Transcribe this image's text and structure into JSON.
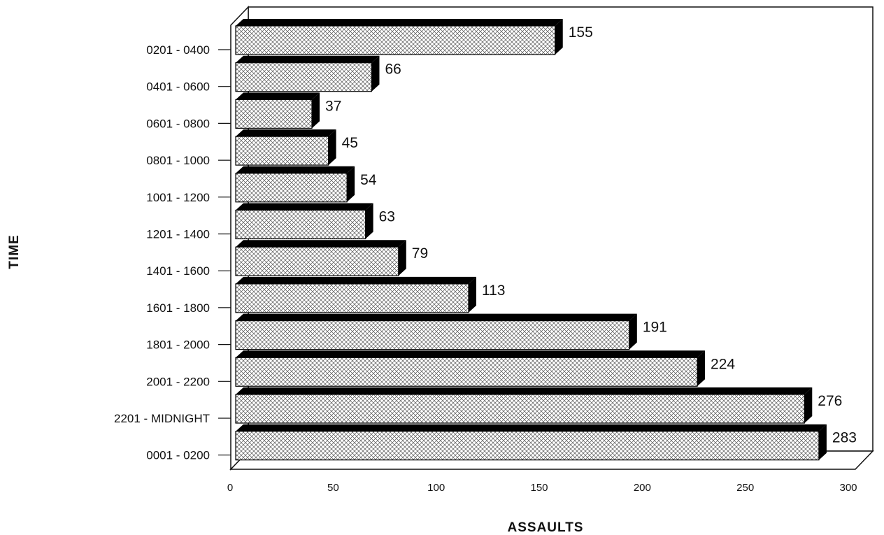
{
  "chart_data": {
    "type": "bar",
    "orientation": "horizontal",
    "categories": [
      "0201 - 0400",
      "0401 - 0600",
      "0601 - 0800",
      "0801 - 1000",
      "1001 - 1200",
      "1201 - 1400",
      "1401 - 1600",
      "1601 - 1800",
      "1801 - 2000",
      "2001 - 2200",
      "2201 - MIDNIGHT",
      "0001 - 0200"
    ],
    "values": [
      155,
      66,
      37,
      45,
      54,
      63,
      79,
      113,
      191,
      224,
      276,
      283
    ],
    "xlabel": "ASSAULTS",
    "ylabel": "TIME",
    "xlim": [
      0,
      300
    ],
    "xticks": [
      "0",
      "50",
      "100",
      "150",
      "200",
      "250",
      "300"
    ],
    "data_labels": true,
    "style": "3d-bars-crosshatch",
    "grid": false,
    "legend": "none"
  }
}
